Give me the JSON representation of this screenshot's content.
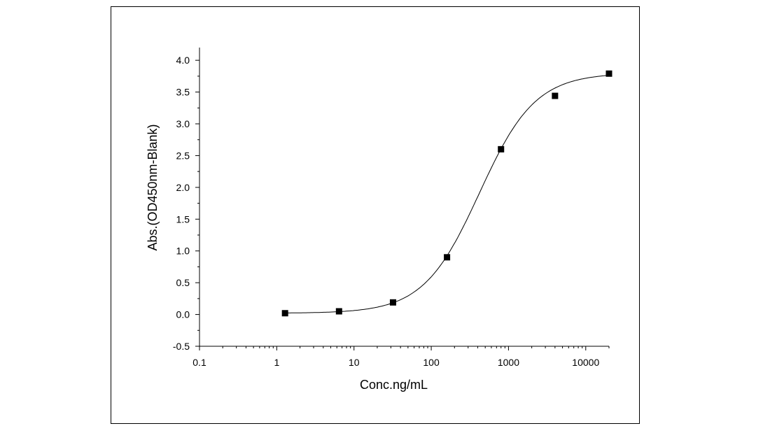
{
  "chart_data": {
    "type": "scatter",
    "title": "",
    "xlabel": "Conc.ng/mL",
    "ylabel": "Abs.(OD450nm-Blank)",
    "x_scale": "log",
    "xlim": [
      0.1,
      20000
    ],
    "ylim": [
      -0.5,
      4.2
    ],
    "x_ticks": [
      0.1,
      1,
      10,
      100,
      1000,
      10000
    ],
    "x_tick_labels": [
      "0.1",
      "1",
      "10",
      "100",
      "1000",
      "10000"
    ],
    "y_ticks": [
      -0.5,
      0.0,
      0.5,
      1.0,
      1.5,
      2.0,
      2.5,
      3.0,
      3.5,
      4.0
    ],
    "y_tick_labels": [
      "-0.5",
      "0.0",
      "0.5",
      "1.0",
      "1.5",
      "2.0",
      "2.5",
      "3.0",
      "3.5",
      "4.0"
    ],
    "grid": false,
    "legend": "none",
    "series": [
      {
        "marker": "square",
        "x": [
          1.28,
          6.4,
          32,
          160,
          800,
          4000,
          20000
        ],
        "y": [
          0.02,
          0.05,
          0.19,
          0.9,
          2.6,
          3.44,
          3.79
        ]
      }
    ],
    "fit": {
      "type": "4PL",
      "bottom": 0.02,
      "top": 3.8,
      "ec50": 420,
      "hill": 1.2
    },
    "colors": {
      "marker": "#000000",
      "line": "#000000",
      "axis": "#000000"
    }
  }
}
